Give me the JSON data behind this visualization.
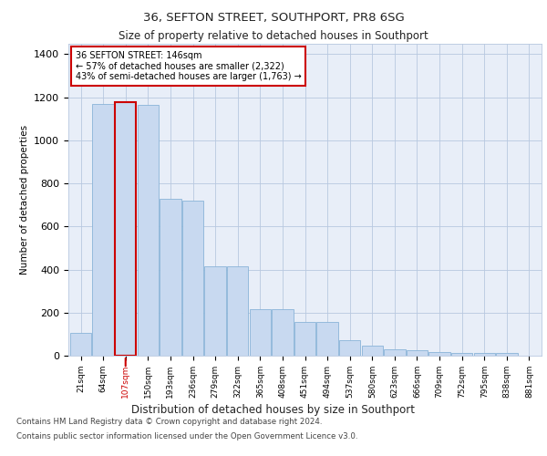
{
  "title1": "36, SEFTON STREET, SOUTHPORT, PR8 6SG",
  "title2": "Size of property relative to detached houses in Southport",
  "xlabel": "Distribution of detached houses by size in Southport",
  "ylabel": "Number of detached properties",
  "footnote1": "Contains HM Land Registry data © Crown copyright and database right 2024.",
  "footnote2": "Contains public sector information licensed under the Open Government Licence v3.0.",
  "annotation_line1": "36 SEFTON STREET: 146sqm",
  "annotation_line2": "← 57% of detached houses are smaller (2,322)",
  "annotation_line3": "43% of semi-detached houses are larger (1,763) →",
  "bar_color": "#c8d9f0",
  "bar_edge_color": "#8ab4d8",
  "highlight_color": "#cc0000",
  "background_color": "#e8eef8",
  "categories": [
    "21sqm",
    "64sqm",
    "107sqm",
    "150sqm",
    "193sqm",
    "236sqm",
    "279sqm",
    "322sqm",
    "365sqm",
    "408sqm",
    "451sqm",
    "494sqm",
    "537sqm",
    "580sqm",
    "623sqm",
    "666sqm",
    "709sqm",
    "752sqm",
    "795sqm",
    "838sqm",
    "881sqm"
  ],
  "values": [
    105,
    1170,
    1175,
    1165,
    730,
    720,
    415,
    415,
    215,
    215,
    155,
    155,
    70,
    48,
    28,
    27,
    18,
    14,
    14,
    14,
    0
  ],
  "highlight_bar_index": 2,
  "ylim": [
    0,
    1450
  ],
  "yticks": [
    0,
    200,
    400,
    600,
    800,
    1000,
    1200,
    1400
  ]
}
